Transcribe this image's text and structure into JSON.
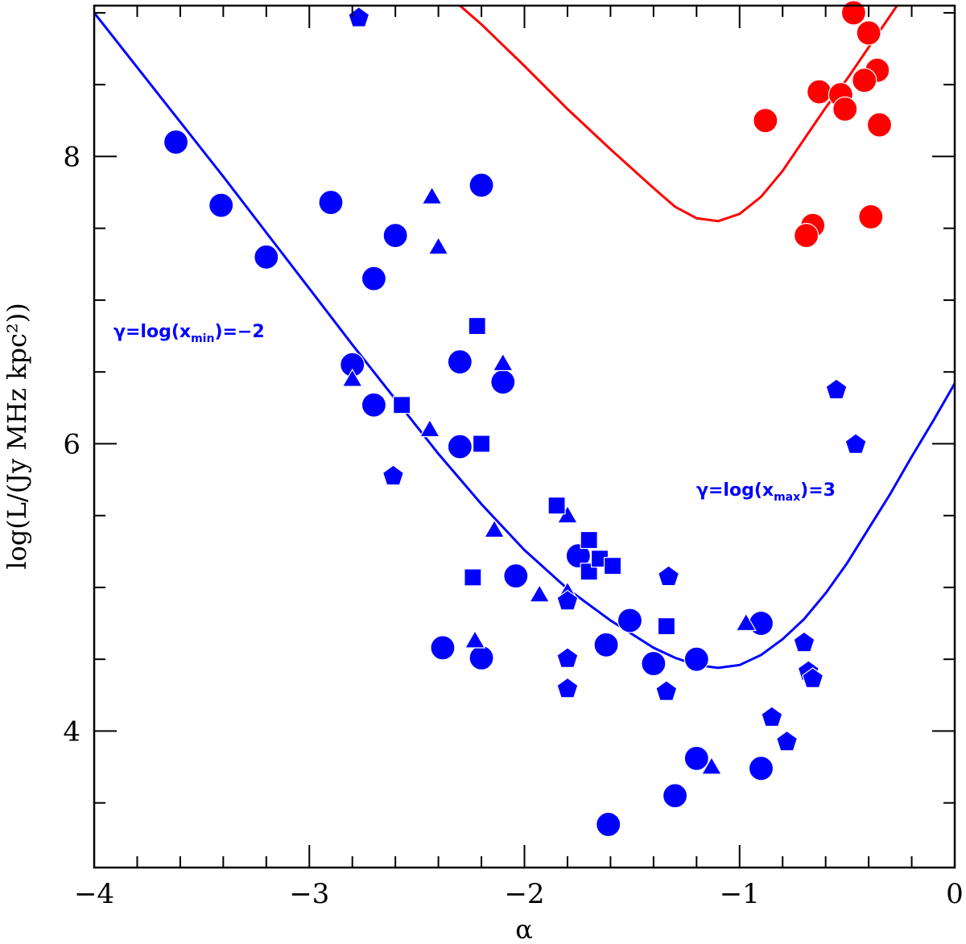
{
  "chart_data": {
    "type": "scatter",
    "title": "",
    "xlabel": "α",
    "ylabel": "log(L/(Jy MHz kpc²))",
    "xlim": [
      -4,
      0
    ],
    "ylim": [
      3.05,
      9.05
    ],
    "xticks": [
      -4,
      -3,
      -2,
      -1,
      0
    ],
    "xtick_labels": [
      "−4",
      "−3",
      "−2",
      "−1",
      "0"
    ],
    "yticks": [
      4,
      6,
      8
    ],
    "ytick_labels": [
      "4",
      "6",
      "8"
    ],
    "grid": false,
    "colors": {
      "blue": "#0000ff",
      "red": "#ff0000",
      "axis": "#000000"
    },
    "annotations": [
      {
        "id": "xmin",
        "prefix": "γ=log(x",
        "sub": "min",
        "suffix": ")=−2",
        "x": -3.75,
        "y": 6.7
      },
      {
        "id": "xmax",
        "prefix": "γ=log(x",
        "sub": "max",
        "suffix": ")=3",
        "x": -1.22,
        "y": 5.5
      }
    ],
    "curves": [
      {
        "name": "γ=log(x_min)=−2",
        "color": "#0000ff",
        "x": [
          -4.0,
          -3.8,
          -3.6,
          -3.4,
          -3.2,
          -3.0,
          -2.8,
          -2.6,
          -2.4,
          -2.2,
          -2.0,
          -1.8,
          -1.6,
          -1.4,
          -1.3,
          -1.2,
          -1.1,
          -1.0,
          -0.9,
          -0.8,
          -0.7,
          -0.6,
          -0.5,
          -0.4,
          -0.3,
          -0.2,
          -0.1,
          0.0
        ],
        "y": [
          9.0,
          8.62,
          8.24,
          7.86,
          7.47,
          7.08,
          6.69,
          6.31,
          5.93,
          5.58,
          5.26,
          4.99,
          4.77,
          4.58,
          4.51,
          4.46,
          4.44,
          4.46,
          4.53,
          4.64,
          4.78,
          4.96,
          5.17,
          5.41,
          5.65,
          5.91,
          6.16,
          6.42
        ]
      },
      {
        "name": "γ=log(x_max)=3",
        "color": "#ff0000",
        "x": [
          -2.3,
          -2.2,
          -2.0,
          -1.8,
          -1.6,
          -1.4,
          -1.3,
          -1.2,
          -1.1,
          -1.0,
          -0.9,
          -0.8,
          -0.7,
          -0.6,
          -0.5,
          -0.4,
          -0.3,
          -0.2
        ],
        "y": [
          9.05,
          8.92,
          8.63,
          8.33,
          8.05,
          7.78,
          7.65,
          7.57,
          7.55,
          7.6,
          7.72,
          7.9,
          8.12,
          8.34,
          8.54,
          8.76,
          8.98,
          9.2
        ]
      }
    ],
    "series": [
      {
        "name": "blue circles",
        "marker": "circle",
        "color": "#0000ff",
        "points": [
          [
            -3.62,
            8.1
          ],
          [
            -3.41,
            7.66
          ],
          [
            -3.2,
            7.3
          ],
          [
            -2.9,
            7.68
          ],
          [
            -2.6,
            7.45
          ],
          [
            -2.7,
            7.15
          ],
          [
            -2.2,
            7.8
          ],
          [
            -2.8,
            6.55
          ],
          [
            -2.7,
            6.27
          ],
          [
            -2.3,
            6.57
          ],
          [
            -2.3,
            5.98
          ],
          [
            -2.1,
            6.43
          ],
          [
            -2.04,
            5.08
          ],
          [
            -1.75,
            5.22
          ],
          [
            -1.51,
            4.77
          ],
          [
            -1.62,
            4.6
          ],
          [
            -1.4,
            4.47
          ],
          [
            -1.2,
            4.5
          ],
          [
            -0.9,
            4.75
          ],
          [
            -2.38,
            4.58
          ],
          [
            -2.2,
            4.51
          ],
          [
            -1.2,
            3.81
          ],
          [
            -1.3,
            3.55
          ],
          [
            -1.61,
            3.35
          ],
          [
            -0.9,
            3.74
          ]
        ]
      },
      {
        "name": "blue triangles",
        "marker": "triangle",
        "color": "#0000ff",
        "points": [
          [
            -2.43,
            7.72
          ],
          [
            -2.4,
            7.37
          ],
          [
            -2.8,
            6.45
          ],
          [
            -2.44,
            6.1
          ],
          [
            -2.1,
            6.56
          ],
          [
            -2.14,
            5.4
          ],
          [
            -1.8,
            5.5
          ],
          [
            -1.93,
            4.95
          ],
          [
            -1.8,
            4.97
          ],
          [
            -2.23,
            4.63
          ],
          [
            -0.97,
            4.75
          ],
          [
            -1.13,
            3.75
          ]
        ]
      },
      {
        "name": "blue squares",
        "marker": "square",
        "color": "#0000ff",
        "points": [
          [
            -2.22,
            6.82
          ],
          [
            -2.57,
            6.27
          ],
          [
            -2.2,
            6.0
          ],
          [
            -1.85,
            5.57
          ],
          [
            -1.7,
            5.33
          ],
          [
            -1.7,
            5.11
          ],
          [
            -1.65,
            5.2
          ],
          [
            -1.59,
            5.15
          ],
          [
            -2.24,
            5.07
          ],
          [
            -1.34,
            4.73
          ]
        ]
      },
      {
        "name": "blue pentagons",
        "marker": "pentagon",
        "color": "#0000ff",
        "points": [
          [
            -2.77,
            8.97
          ],
          [
            -2.61,
            5.78
          ],
          [
            -1.8,
            4.91
          ],
          [
            -1.8,
            4.51
          ],
          [
            -1.8,
            4.3
          ],
          [
            -1.33,
            5.08
          ],
          [
            -1.34,
            4.28
          ],
          [
            -0.7,
            4.62
          ],
          [
            -0.68,
            4.42
          ],
          [
            -0.66,
            4.37
          ],
          [
            -0.55,
            6.38
          ],
          [
            -0.46,
            6.0
          ],
          [
            -0.85,
            4.1
          ],
          [
            -0.78,
            3.93
          ]
        ]
      },
      {
        "name": "red circles",
        "marker": "circle",
        "color": "#ff0000",
        "points": [
          [
            -0.47,
            9.0
          ],
          [
            -0.4,
            8.86
          ],
          [
            -0.36,
            8.6
          ],
          [
            -0.42,
            8.53
          ],
          [
            -0.63,
            8.45
          ],
          [
            -0.53,
            8.43
          ],
          [
            -0.51,
            8.33
          ],
          [
            -0.88,
            8.25
          ],
          [
            -0.35,
            8.22
          ],
          [
            -0.39,
            7.58
          ],
          [
            -0.66,
            7.52
          ],
          [
            -0.69,
            7.45
          ]
        ]
      }
    ]
  }
}
